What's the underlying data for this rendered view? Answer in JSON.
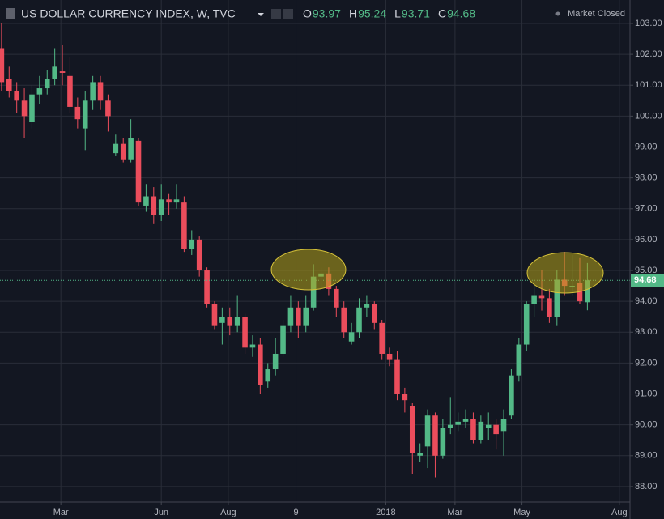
{
  "chart_data": {
    "type": "candlestick",
    "title": "US DOLLAR CURRENCY INDEX, W, TVC",
    "status": "Market Closed",
    "ohlc_labels": [
      "O",
      "H",
      "L",
      "C"
    ],
    "up_color": "#53b987",
    "down_color": "#eb4d5c",
    "series": {
      "open": [
        102.2,
        101.2,
        100.8,
        100.5,
        99.8,
        100.7,
        100.9,
        101.2,
        101.45,
        101.3,
        100.3,
        99.6,
        100.5,
        101.1,
        100.5,
        98.8,
        99.1,
        98.6,
        99.2,
        97.1,
        97.4,
        96.8,
        97.3,
        97.2,
        97.2,
        95.7,
        96.0,
        95.0,
        93.9,
        93.3,
        93.5,
        93.2,
        93.5,
        92.5,
        92.6,
        91.4,
        91.8,
        92.3,
        93.2,
        93.8,
        93.2,
        93.8,
        94.8,
        94.9,
        94.4,
        93.8,
        92.7,
        93.0,
        93.8,
        93.9,
        93.3,
        92.3,
        92.1,
        91.0,
        90.6,
        89.0,
        89.3,
        90.3,
        89.0,
        89.9,
        90.0,
        90.1,
        90.2,
        89.5,
        89.9,
        90.0,
        89.8,
        90.3,
        91.6,
        92.6,
        93.9,
        94.2,
        94.1,
        93.5,
        94.7,
        94.5,
        94.6,
        93.97
      ],
      "high": [
        103.0,
        101.6,
        101.1,
        100.9,
        101.0,
        101.3,
        101.5,
        102.2,
        102.3,
        101.9,
        100.6,
        100.8,
        101.3,
        101.3,
        100.7,
        99.4,
        99.3,
        99.9,
        99.3,
        97.8,
        97.7,
        97.8,
        97.5,
        97.8,
        97.4,
        96.3,
        96.1,
        95.1,
        94.0,
        93.8,
        93.8,
        94.2,
        93.6,
        92.9,
        92.8,
        92.0,
        92.8,
        93.4,
        94.2,
        94.0,
        94.2,
        95.2,
        95.1,
        95.1,
        94.5,
        94.0,
        93.3,
        94.1,
        94.2,
        94.0,
        93.4,
        92.5,
        92.4,
        91.2,
        90.7,
        89.4,
        90.5,
        90.4,
        90.2,
        90.9,
        90.4,
        90.5,
        90.4,
        90.3,
        90.4,
        90.2,
        90.5,
        91.8,
        92.8,
        94.0,
        94.5,
        95.0,
        94.4,
        95.0,
        95.6,
        95.5,
        95.4,
        95.24
      ],
      "low": [
        100.8,
        100.6,
        100.1,
        99.3,
        99.6,
        100.4,
        100.7,
        101.0,
        101.0,
        100.1,
        99.6,
        98.9,
        100.2,
        100.2,
        99.5,
        98.7,
        98.5,
        98.5,
        97.1,
        96.9,
        96.5,
        96.6,
        96.8,
        97.0,
        95.6,
        95.5,
        94.8,
        93.8,
        93.1,
        92.6,
        92.9,
        93.0,
        92.3,
        92.2,
        91.0,
        91.2,
        91.6,
        92.2,
        93.0,
        92.8,
        93.0,
        93.7,
        94.4,
        94.2,
        93.5,
        92.8,
        92.6,
        92.8,
        93.5,
        93.1,
        92.1,
        91.9,
        90.8,
        90.4,
        88.4,
        88.8,
        88.6,
        88.3,
        88.9,
        89.7,
        89.8,
        89.9,
        89.4,
        89.4,
        89.5,
        89.2,
        89.0,
        90.2,
        91.4,
        92.4,
        93.5,
        93.7,
        93.3,
        93.2,
        94.2,
        94.2,
        93.9,
        93.71
      ],
      "close": [
        101.1,
        100.8,
        100.5,
        100.0,
        100.7,
        100.9,
        101.2,
        101.6,
        101.4,
        100.3,
        99.9,
        100.5,
        101.1,
        100.5,
        100.0,
        99.1,
        98.6,
        99.3,
        97.2,
        97.4,
        96.8,
        97.3,
        97.2,
        97.3,
        95.7,
        96.0,
        95.0,
        93.9,
        93.2,
        93.5,
        93.2,
        93.5,
        92.5,
        92.6,
        91.3,
        91.8,
        92.3,
        93.2,
        93.8,
        93.2,
        93.8,
        94.8,
        94.9,
        94.4,
        93.8,
        93.0,
        93.0,
        93.8,
        93.9,
        93.3,
        92.3,
        92.1,
        91.0,
        90.8,
        89.1,
        89.1,
        90.3,
        89.0,
        89.9,
        90.0,
        90.1,
        90.2,
        89.5,
        90.1,
        90.0,
        89.7,
        90.2,
        91.6,
        92.6,
        93.9,
        94.2,
        94.1,
        93.5,
        94.7,
        94.5,
        94.5,
        94.0,
        94.68
      ]
    },
    "ylim": [
      87.5,
      103.76
    ],
    "yticks": [
      {
        "value": 88,
        "label": "88.00"
      },
      {
        "value": 89,
        "label": "89.00"
      },
      {
        "value": 90,
        "label": "90.00"
      },
      {
        "value": 91,
        "label": "91.00"
      },
      {
        "value": 92,
        "label": "92.00"
      },
      {
        "value": 93,
        "label": "93.00"
      },
      {
        "value": 94,
        "label": "94.00"
      },
      {
        "value": 95,
        "label": "95.00"
      },
      {
        "value": 96,
        "label": "96.00"
      },
      {
        "value": 97,
        "label": "97.00"
      },
      {
        "value": 98,
        "label": "98.00"
      },
      {
        "value": 99,
        "label": "99.00"
      },
      {
        "value": 100,
        "label": "100.00"
      },
      {
        "value": 101,
        "label": "101.00"
      },
      {
        "value": 102,
        "label": "102.00"
      },
      {
        "value": 103,
        "label": "103.00"
      }
    ],
    "xlim": [
      -0.2,
      82.6
    ],
    "xticks": [
      {
        "value": 7.8,
        "label": "Mar"
      },
      {
        "value": 21,
        "label": "Jun"
      },
      {
        "value": 29.8,
        "label": "Aug"
      },
      {
        "value": 38.7,
        "label": "9"
      },
      {
        "value": 50.5,
        "label": "2018"
      },
      {
        "value": 59.6,
        "label": "Mar"
      },
      {
        "value": 68.4,
        "label": "May"
      },
      {
        "value": 81.2,
        "label": "Aug"
      }
    ],
    "grid": true
  }
}
